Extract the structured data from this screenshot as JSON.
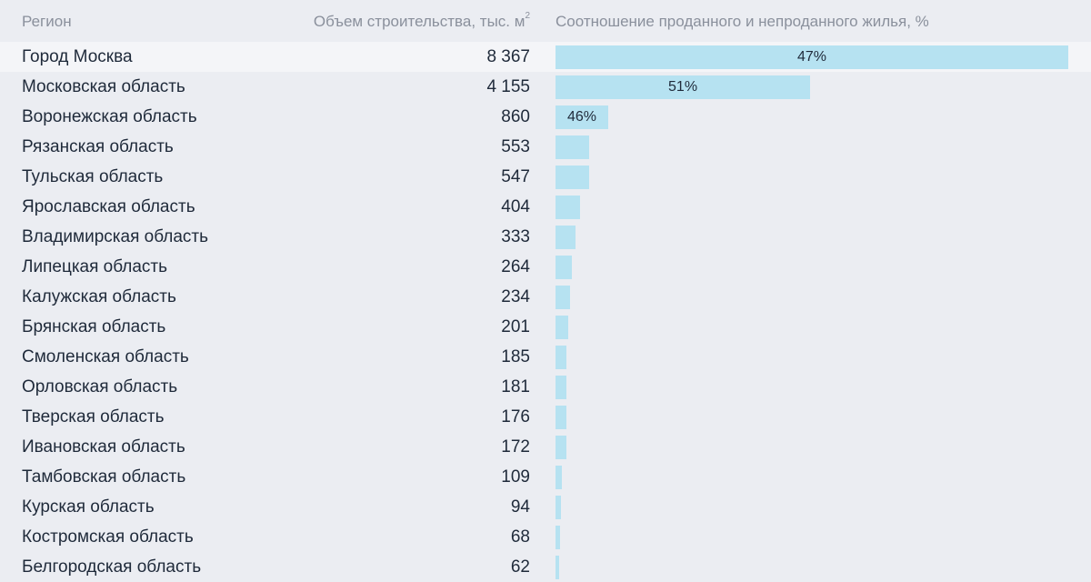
{
  "header": {
    "region": "Регион",
    "volume": "Объем строительства, тыс. м",
    "volume_sup": "2",
    "ratio": "Соотношение проданного и непроданного жилья, %"
  },
  "colors": {
    "bar": "#b6e2f1",
    "background": "#ebedf2",
    "highlight_row": "#f4f5f8"
  },
  "chart_data": {
    "type": "bar",
    "orientation": "horizontal",
    "categories": [
      "Город Москва",
      "Московская область",
      "Воронежская область",
      "Рязанская область",
      "Тульская область",
      "Ярославская область",
      "Владимирская область",
      "Липецкая область",
      "Калужская область",
      "Брянская область",
      "Смоленская область",
      "Орловская область",
      "Тверская область",
      "Ивановская область",
      "Тамбовская область",
      "Курская область",
      "Костромская область",
      "Белгородская область"
    ],
    "values": [
      8367,
      4155,
      860,
      553,
      547,
      404,
      333,
      264,
      234,
      201,
      185,
      181,
      176,
      172,
      109,
      94,
      68,
      62
    ],
    "value_labels": [
      "8 367",
      "4 155",
      "860",
      "553",
      "547",
      "404",
      "333",
      "264",
      "234",
      "201",
      "185",
      "181",
      "176",
      "172",
      "109",
      "94",
      "68",
      "62"
    ],
    "bar_labels": [
      "47%",
      "51%",
      "46%",
      "",
      "",
      "",
      "",
      "",
      "",
      "",
      "",
      "",
      "",
      "",
      "",
      "",
      "",
      ""
    ]
  }
}
